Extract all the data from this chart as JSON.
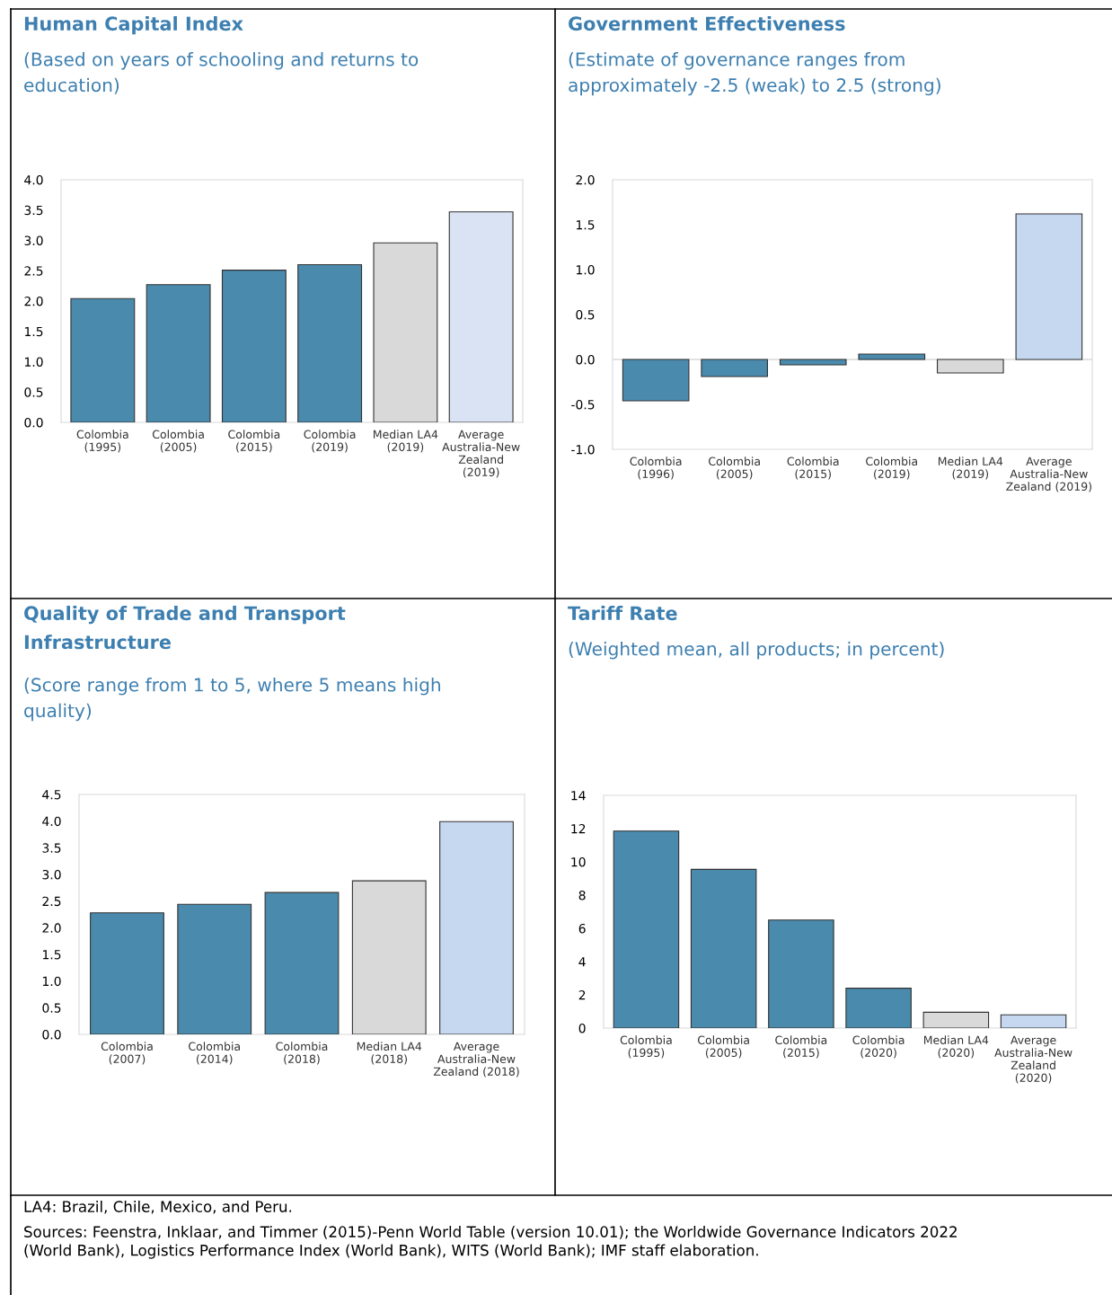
{
  "chart_data": [
    {
      "type": "bar",
      "title": "Human Capital Index",
      "subtitle": "(Based on years of schooling and returns to\neducation)",
      "categories": [
        "Colombia\n(1995)",
        "Colombia\n(2005)",
        "Colombia\n(2015)",
        "Colombia\n(2019)",
        "Median LA4\n(2019)",
        "Average\nAustralia-New\nZealand\n(2019)"
      ],
      "values": [
        2.04,
        2.27,
        2.51,
        2.6,
        2.96,
        3.47
      ],
      "colors": [
        "#4a8aad",
        "#4a8aad",
        "#4a8aad",
        "#4a8aad",
        "#d9d9d9",
        "#dae3f3"
      ],
      "ylim": [
        0.0,
        4.0
      ],
      "yticks": [
        {
          "value": 0,
          "label": "0.0"
        },
        0.5,
        {
          "value": 1,
          "label": "1.0"
        },
        1.5,
        {
          "value": 2,
          "label": "2.0"
        },
        2.5,
        {
          "value": 3,
          "label": "3.0"
        },
        3.5,
        {
          "value": 4,
          "label": "4.0"
        }
      ]
    },
    {
      "type": "bar",
      "title": "Government Effectiveness",
      "subtitle": "(Estimate of governance ranges from\napproximately -2.5 (weak) to 2.5 (strong)",
      "categories": [
        "Colombia\n(1996)",
        "Colombia\n(2005)",
        "Colombia\n(2015)",
        "Colombia\n(2019)",
        "Median LA4\n(2019)",
        "Average\nAustralia-New\nZealand (2019)"
      ],
      "values": [
        -0.46,
        -0.19,
        -0.06,
        0.06,
        -0.15,
        1.62
      ],
      "colors": [
        "#4a8aad",
        "#4a8aad",
        "#4a8aad",
        "#4a8aad",
        "#d9d9d9",
        "#c5d8f0"
      ],
      "ylim": [
        -1.0,
        2.0
      ],
      "yticks": [
        {
          "value": -1,
          "label": "-1.0"
        },
        {
          "value": -0.5,
          "label": "-0.5"
        },
        {
          "value": 0,
          "label": "0.0"
        },
        0.5,
        {
          "value": 1,
          "label": "1.0"
        },
        1.5,
        {
          "value": 2,
          "label": "2.0"
        }
      ],
      "ref_lines": [
        {
          "axis": "y",
          "value": 0,
          "color": "#d9d9d9"
        }
      ]
    },
    {
      "type": "bar",
      "title": "Quality of Trade and Transport\nInfrastructure",
      "subtitle": "(Score range from 1 to 5, where 5 means high\nquality)",
      "categories": [
        "Colombia\n(2007)",
        "Colombia\n(2014)",
        "Colombia\n(2018)",
        "Median LA4\n(2018)",
        "Average\nAustralia-New\nZealand (2018)"
      ],
      "values": [
        2.28,
        2.44,
        2.66,
        2.88,
        3.99
      ],
      "colors": [
        "#4a8aad",
        "#4a8aad",
        "#4a8aad",
        "#d9d9d9",
        "#c5d8f0"
      ],
      "ylim": [
        0.0,
        4.5
      ],
      "yticks": [
        {
          "value": 0,
          "label": "0.0"
        },
        0.5,
        {
          "value": 1,
          "label": "1.0"
        },
        1.5,
        {
          "value": 2,
          "label": "2.0"
        },
        2.5,
        {
          "value": 3,
          "label": "3.0"
        },
        3.5,
        {
          "value": 4,
          "label": "4.0"
        },
        4.5
      ]
    },
    {
      "type": "bar",
      "title": "Tariff Rate",
      "subtitle": "(Weighted mean, all products; in percent)",
      "categories": [
        "Colombia\n(1995)",
        "Colombia\n(2005)",
        "Colombia\n(2015)",
        "Colombia\n(2020)",
        "Median LA4\n(2020)",
        "Average\nAustralia-New\nZealand\n(2020)"
      ],
      "values": [
        11.85,
        9.55,
        6.5,
        2.4,
        0.95,
        0.8
      ],
      "colors": [
        "#4a8aad",
        "#4a8aad",
        "#4a8aad",
        "#4a8aad",
        "#d9d9d9",
        "#c5d8f0"
      ],
      "ylim": [
        0,
        14
      ],
      "yticks": [
        0,
        2,
        4,
        6,
        8,
        10,
        12,
        14
      ],
      "annotations": [
        "LA4: Brazil, Chile, Mexico, and Peru.",
        "Sources: Feenstra, Inklaar, and Timmer (2015)-Penn World Table (version 10.01); the Worldwide Governance Indicators 2022\n(World Bank), Logistics Performance Index (World Bank), WITS (World Bank); IMF staff elaboration."
      ]
    }
  ]
}
